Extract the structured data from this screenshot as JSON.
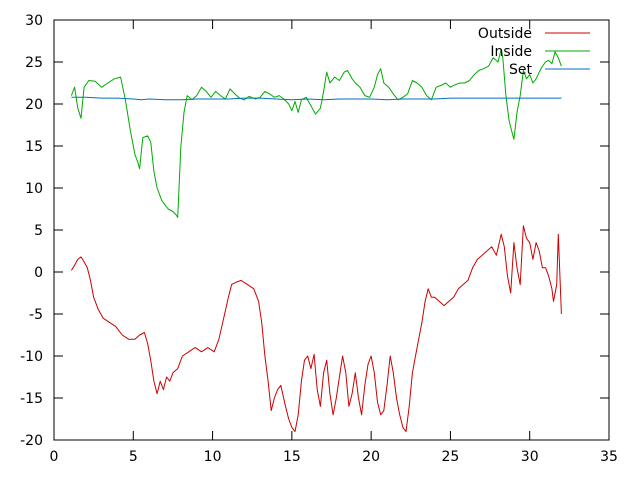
{
  "chart_data": {
    "type": "line",
    "title": "",
    "xlabel": "",
    "ylabel": "",
    "xlim": [
      0,
      35
    ],
    "ylim": [
      -20,
      30
    ],
    "xticks": [
      0,
      5,
      10,
      15,
      20,
      25,
      30,
      35
    ],
    "yticks": [
      -20,
      -15,
      -10,
      -5,
      0,
      5,
      10,
      15,
      20,
      25,
      30
    ],
    "grid": false,
    "legend_position": "top-right",
    "series": [
      {
        "name": "Outside",
        "color": "#cc0000",
        "points": [
          [
            1.1,
            0.2
          ],
          [
            1.3,
            0.8
          ],
          [
            1.5,
            1.5
          ],
          [
            1.7,
            1.8
          ],
          [
            1.9,
            1.2
          ],
          [
            2.1,
            0.5
          ],
          [
            2.3,
            -1.0
          ],
          [
            2.5,
            -3.0
          ],
          [
            2.8,
            -4.5
          ],
          [
            3.1,
            -5.5
          ],
          [
            3.5,
            -6.0
          ],
          [
            3.9,
            -6.5
          ],
          [
            4.3,
            -7.5
          ],
          [
            4.7,
            -8.0
          ],
          [
            5.1,
            -8.0
          ],
          [
            5.4,
            -7.5
          ],
          [
            5.7,
            -7.2
          ],
          [
            5.9,
            -8.5
          ],
          [
            6.1,
            -10.5
          ],
          [
            6.3,
            -13.0
          ],
          [
            6.5,
            -14.5
          ],
          [
            6.7,
            -13.0
          ],
          [
            6.9,
            -14.0
          ],
          [
            7.1,
            -12.5
          ],
          [
            7.3,
            -13.0
          ],
          [
            7.5,
            -12.0
          ],
          [
            7.8,
            -11.5
          ],
          [
            8.1,
            -10.0
          ],
          [
            8.5,
            -9.5
          ],
          [
            8.9,
            -9.0
          ],
          [
            9.3,
            -9.5
          ],
          [
            9.7,
            -9.0
          ],
          [
            10.1,
            -9.5
          ],
          [
            10.4,
            -8.0
          ],
          [
            10.7,
            -5.5
          ],
          [
            11.0,
            -3.0
          ],
          [
            11.2,
            -1.5
          ],
          [
            11.5,
            -1.2
          ],
          [
            11.8,
            -1.0
          ],
          [
            12.2,
            -1.5
          ],
          [
            12.6,
            -2.0
          ],
          [
            12.9,
            -3.5
          ],
          [
            13.1,
            -6.0
          ],
          [
            13.3,
            -10.0
          ],
          [
            13.5,
            -13.0
          ],
          [
            13.7,
            -16.5
          ],
          [
            13.9,
            -15.0
          ],
          [
            14.1,
            -14.0
          ],
          [
            14.3,
            -13.5
          ],
          [
            14.6,
            -16.0
          ],
          [
            14.8,
            -17.5
          ],
          [
            15.0,
            -18.5
          ],
          [
            15.2,
            -19.0
          ],
          [
            15.4,
            -17.0
          ],
          [
            15.6,
            -13.0
          ],
          [
            15.8,
            -10.5
          ],
          [
            16.0,
            -10.0
          ],
          [
            16.2,
            -11.5
          ],
          [
            16.4,
            -9.8
          ],
          [
            16.6,
            -14.0
          ],
          [
            16.8,
            -16.0
          ],
          [
            17.0,
            -12.0
          ],
          [
            17.2,
            -10.5
          ],
          [
            17.4,
            -14.5
          ],
          [
            17.6,
            -17.0
          ],
          [
            17.8,
            -15.0
          ],
          [
            18.0,
            -12.5
          ],
          [
            18.2,
            -10.0
          ],
          [
            18.4,
            -12.0
          ],
          [
            18.6,
            -16.0
          ],
          [
            18.8,
            -14.5
          ],
          [
            19.0,
            -12.0
          ],
          [
            19.2,
            -15.0
          ],
          [
            19.4,
            -17.0
          ],
          [
            19.6,
            -13.5
          ],
          [
            19.8,
            -11.0
          ],
          [
            20.0,
            -10.0
          ],
          [
            20.2,
            -12.0
          ],
          [
            20.4,
            -15.5
          ],
          [
            20.6,
            -17.0
          ],
          [
            20.8,
            -16.5
          ],
          [
            21.0,
            -13.5
          ],
          [
            21.2,
            -10.0
          ],
          [
            21.4,
            -12.0
          ],
          [
            21.6,
            -15.0
          ],
          [
            21.8,
            -17.0
          ],
          [
            22.0,
            -18.5
          ],
          [
            22.2,
            -19.0
          ],
          [
            22.4,
            -16.0
          ],
          [
            22.6,
            -12.0
          ],
          [
            22.8,
            -10.0
          ],
          [
            23.0,
            -8.0
          ],
          [
            23.2,
            -6.0
          ],
          [
            23.4,
            -3.5
          ],
          [
            23.6,
            -2.0
          ],
          [
            23.8,
            -3.0
          ],
          [
            24.0,
            -3.0
          ],
          [
            24.3,
            -3.5
          ],
          [
            24.6,
            -4.0
          ],
          [
            24.9,
            -3.5
          ],
          [
            25.2,
            -3.0
          ],
          [
            25.5,
            -2.0
          ],
          [
            25.8,
            -1.5
          ],
          [
            26.1,
            -1.0
          ],
          [
            26.4,
            0.5
          ],
          [
            26.7,
            1.5
          ],
          [
            27.0,
            2.0
          ],
          [
            27.3,
            2.5
          ],
          [
            27.6,
            3.0
          ],
          [
            27.9,
            2.0
          ],
          [
            28.2,
            4.5
          ],
          [
            28.4,
            3.0
          ],
          [
            28.6,
            -0.5
          ],
          [
            28.8,
            -2.5
          ],
          [
            29.0,
            3.5
          ],
          [
            29.2,
            0.5
          ],
          [
            29.4,
            -1.5
          ],
          [
            29.6,
            5.5
          ],
          [
            29.8,
            4.0
          ],
          [
            30.0,
            3.5
          ],
          [
            30.2,
            1.5
          ],
          [
            30.4,
            3.5
          ],
          [
            30.6,
            2.5
          ],
          [
            30.8,
            0.5
          ],
          [
            31.0,
            0.5
          ],
          [
            31.2,
            -0.5
          ],
          [
            31.4,
            -2.0
          ],
          [
            31.5,
            -3.5
          ],
          [
            31.7,
            -1.5
          ],
          [
            31.8,
            4.5
          ],
          [
            32.0,
            -5.0
          ]
        ]
      },
      {
        "name": "Inside",
        "color": "#00aa00",
        "points": [
          [
            1.1,
            21.0
          ],
          [
            1.3,
            22.0
          ],
          [
            1.5,
            19.5
          ],
          [
            1.7,
            18.3
          ],
          [
            1.9,
            22.0
          ],
          [
            2.2,
            22.8
          ],
          [
            2.6,
            22.7
          ],
          [
            3.0,
            22.0
          ],
          [
            3.4,
            22.5
          ],
          [
            3.8,
            23.0
          ],
          [
            4.2,
            23.2
          ],
          [
            4.5,
            20.5
          ],
          [
            4.8,
            17.0
          ],
          [
            5.1,
            14.0
          ],
          [
            5.3,
            13.0
          ],
          [
            5.4,
            12.3
          ],
          [
            5.6,
            16.0
          ],
          [
            5.9,
            16.2
          ],
          [
            6.1,
            15.5
          ],
          [
            6.3,
            12.0
          ],
          [
            6.5,
            10.0
          ],
          [
            6.8,
            8.5
          ],
          [
            7.2,
            7.5
          ],
          [
            7.5,
            7.2
          ],
          [
            7.7,
            6.8
          ],
          [
            7.8,
            6.5
          ],
          [
            8.0,
            15.0
          ],
          [
            8.2,
            19.0
          ],
          [
            8.4,
            21.0
          ],
          [
            8.7,
            20.5
          ],
          [
            9.0,
            21.0
          ],
          [
            9.3,
            22.0
          ],
          [
            9.6,
            21.5
          ],
          [
            9.9,
            20.8
          ],
          [
            10.2,
            21.5
          ],
          [
            10.5,
            21.0
          ],
          [
            10.8,
            20.6
          ],
          [
            11.1,
            21.8
          ],
          [
            11.4,
            21.2
          ],
          [
            11.7,
            20.7
          ],
          [
            12.0,
            20.5
          ],
          [
            12.3,
            20.9
          ],
          [
            12.7,
            20.6
          ],
          [
            13.0,
            20.8
          ],
          [
            13.3,
            21.5
          ],
          [
            13.6,
            21.2
          ],
          [
            13.9,
            20.8
          ],
          [
            14.2,
            21.0
          ],
          [
            14.5,
            20.6
          ],
          [
            14.8,
            20.0
          ],
          [
            15.0,
            19.2
          ],
          [
            15.2,
            20.3
          ],
          [
            15.4,
            19.0
          ],
          [
            15.6,
            20.5
          ],
          [
            15.9,
            20.8
          ],
          [
            16.2,
            19.8
          ],
          [
            16.5,
            18.8
          ],
          [
            16.8,
            19.5
          ],
          [
            17.0,
            21.5
          ],
          [
            17.2,
            23.8
          ],
          [
            17.4,
            22.5
          ],
          [
            17.7,
            23.2
          ],
          [
            18.0,
            22.8
          ],
          [
            18.3,
            23.8
          ],
          [
            18.5,
            24.0
          ],
          [
            18.8,
            23.0
          ],
          [
            19.0,
            22.5
          ],
          [
            19.3,
            22.0
          ],
          [
            19.6,
            21.0
          ],
          [
            19.9,
            20.8
          ],
          [
            20.2,
            22.0
          ],
          [
            20.4,
            23.5
          ],
          [
            20.6,
            24.2
          ],
          [
            20.8,
            22.5
          ],
          [
            21.1,
            22.0
          ],
          [
            21.4,
            21.2
          ],
          [
            21.7,
            20.5
          ],
          [
            22.0,
            20.8
          ],
          [
            22.3,
            21.2
          ],
          [
            22.6,
            22.8
          ],
          [
            22.9,
            22.5
          ],
          [
            23.2,
            22.0
          ],
          [
            23.5,
            21.0
          ],
          [
            23.8,
            20.5
          ],
          [
            24.1,
            22.0
          ],
          [
            24.4,
            22.2
          ],
          [
            24.7,
            22.5
          ],
          [
            25.0,
            22.0
          ],
          [
            25.3,
            22.3
          ],
          [
            25.6,
            22.5
          ],
          [
            25.9,
            22.5
          ],
          [
            26.2,
            22.8
          ],
          [
            26.5,
            23.5
          ],
          [
            26.8,
            24.0
          ],
          [
            27.1,
            24.2
          ],
          [
            27.4,
            24.5
          ],
          [
            27.7,
            25.5
          ],
          [
            28.0,
            25.0
          ],
          [
            28.2,
            26.5
          ],
          [
            28.3,
            25.5
          ],
          [
            28.5,
            21.0
          ],
          [
            28.7,
            18.0
          ],
          [
            28.9,
            16.5
          ],
          [
            29.0,
            15.8
          ],
          [
            29.2,
            19.0
          ],
          [
            29.4,
            21.0
          ],
          [
            29.6,
            24.0
          ],
          [
            29.8,
            23.0
          ],
          [
            30.0,
            23.5
          ],
          [
            30.2,
            22.5
          ],
          [
            30.4,
            23.0
          ],
          [
            30.6,
            23.8
          ],
          [
            30.8,
            24.5
          ],
          [
            31.0,
            25.0
          ],
          [
            31.2,
            25.2
          ],
          [
            31.4,
            24.8
          ],
          [
            31.6,
            26.2
          ],
          [
            31.8,
            25.5
          ],
          [
            32.0,
            24.5
          ]
        ]
      },
      {
        "name": "Set",
        "color": "#0072bb",
        "points": [
          [
            1.1,
            20.8
          ],
          [
            2.0,
            20.8
          ],
          [
            3.0,
            20.7
          ],
          [
            4.0,
            20.7
          ],
          [
            5.0,
            20.6
          ],
          [
            5.5,
            20.5
          ],
          [
            6.0,
            20.6
          ],
          [
            7.0,
            20.5
          ],
          [
            8.0,
            20.5
          ],
          [
            9.0,
            20.6
          ],
          [
            10.0,
            20.6
          ],
          [
            11.0,
            20.6
          ],
          [
            12.0,
            20.7
          ],
          [
            13.0,
            20.7
          ],
          [
            14.0,
            20.6
          ],
          [
            15.0,
            20.5
          ],
          [
            16.0,
            20.6
          ],
          [
            17.0,
            20.5
          ],
          [
            18.0,
            20.6
          ],
          [
            19.0,
            20.6
          ],
          [
            20.0,
            20.6
          ],
          [
            21.0,
            20.5
          ],
          [
            22.0,
            20.6
          ],
          [
            23.0,
            20.6
          ],
          [
            24.0,
            20.6
          ],
          [
            25.0,
            20.7
          ],
          [
            26.0,
            20.7
          ],
          [
            27.0,
            20.7
          ],
          [
            28.0,
            20.7
          ],
          [
            29.0,
            20.7
          ],
          [
            30.0,
            20.7
          ],
          [
            31.0,
            20.7
          ],
          [
            32.0,
            20.7
          ]
        ]
      }
    ]
  }
}
